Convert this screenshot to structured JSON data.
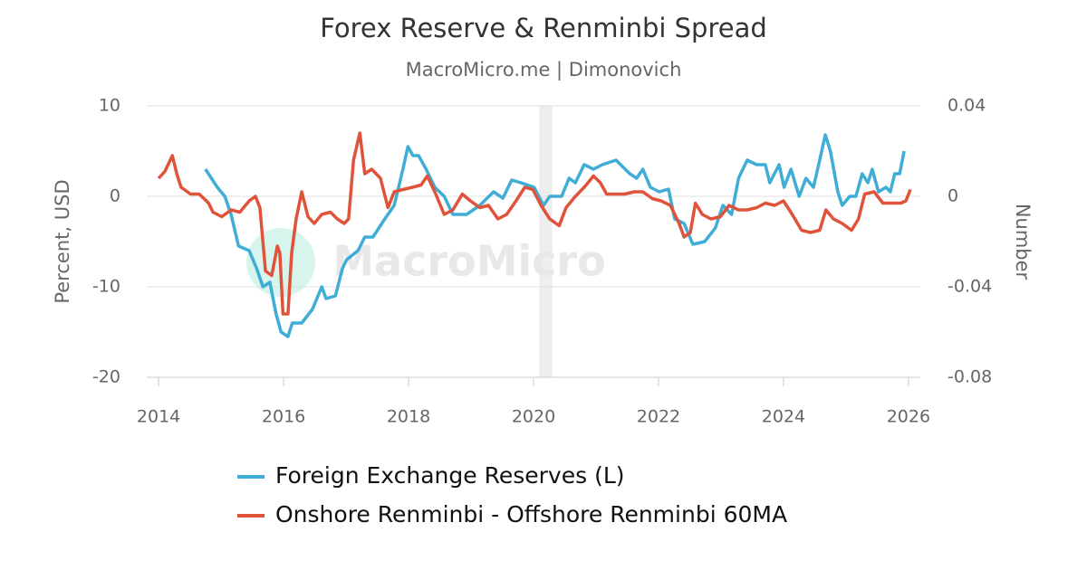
{
  "chart_data": {
    "type": "line",
    "title": "Forex Reserve & Renminbi Spread",
    "subtitle": "MacroMicro.me | Dimonovich",
    "watermark": "MacroMicro",
    "y_label": "Percent, USD",
    "y2_label": "Number",
    "xlim": [
      2013.81,
      2026.19
    ],
    "xticks": [
      2014,
      2016,
      2018,
      2020,
      2022,
      2024,
      2026
    ],
    "ylim": [
      -20,
      10
    ],
    "yticks": [
      10,
      0,
      -10,
      -20
    ],
    "y2lim": [
      -0.08,
      0.04
    ],
    "y2ticks": [
      0.04,
      0,
      -0.04,
      -0.08
    ],
    "grid": true,
    "recession_shading": [
      2020.09,
      2020.3
    ],
    "series": [
      {
        "name": "Foreign Exchange Reserves (L)",
        "color": "#3fadd6",
        "axis": "y",
        "x": [
          2014.75,
          2014.94,
          2015.06,
          2015.16,
          2015.28,
          2015.45,
          2015.57,
          2015.67,
          2015.78,
          2015.88,
          2015.96,
          2016.07,
          2016.14,
          2016.29,
          2016.46,
          2016.61,
          2016.68,
          2016.83,
          2016.94,
          2017.01,
          2017.19,
          2017.3,
          2017.43,
          2017.62,
          2017.77,
          2017.91,
          2017.99,
          2018.07,
          2018.16,
          2018.28,
          2018.42,
          2018.57,
          2018.71,
          2018.93,
          2019.14,
          2019.36,
          2019.51,
          2019.65,
          2019.8,
          2020.01,
          2020.16,
          2020.26,
          2020.45,
          2020.57,
          2020.67,
          2020.81,
          2020.96,
          2021.1,
          2021.32,
          2021.54,
          2021.65,
          2021.75,
          2021.87,
          2022.01,
          2022.16,
          2022.26,
          2022.41,
          2022.55,
          2022.74,
          2022.91,
          2023.03,
          2023.17,
          2023.28,
          2023.42,
          2023.57,
          2023.71,
          2023.78,
          2023.93,
          2024.01,
          2024.12,
          2024.25,
          2024.36,
          2024.48,
          2024.58,
          2024.67,
          2024.75,
          2024.87,
          2024.94,
          2025.06,
          2025.16,
          2025.26,
          2025.35,
          2025.42,
          2025.52,
          2025.64,
          2025.71,
          2025.78,
          2025.86,
          2025.93
        ],
        "values": [
          3,
          1,
          0,
          -2,
          -5.5,
          -6,
          -8,
          -10,
          -9.5,
          -13,
          -15,
          -15.5,
          -14,
          -14,
          -12.5,
          -10,
          -11.3,
          -11,
          -8,
          -7,
          -6,
          -4.5,
          -4.5,
          -2.5,
          -1,
          3,
          5.5,
          4.5,
          4.5,
          3,
          1,
          0,
          -2,
          -2,
          -1,
          0.5,
          -0.2,
          1.8,
          1.5,
          1,
          -1,
          0,
          0,
          2,
          1.5,
          3.5,
          3,
          3.5,
          4,
          2.5,
          2,
          3,
          1,
          0.5,
          0.8,
          -2.5,
          -3,
          -5.3,
          -5,
          -3.5,
          -1,
          -2,
          2,
          4,
          3.5,
          3.5,
          1.5,
          3.5,
          1,
          3,
          0,
          2,
          1,
          4,
          6.8,
          5,
          0.5,
          -1,
          0,
          0,
          2.5,
          1.5,
          3,
          0.5,
          1,
          0.5,
          2.5,
          2.5,
          5
        ]
      },
      {
        "name": "Onshore Renminbi - Offshore Renminbi 60MA",
        "color": "#e0533a",
        "axis": "y2",
        "x": [
          2014.0,
          2014.1,
          2014.22,
          2014.29,
          2014.36,
          2014.51,
          2014.65,
          2014.8,
          2014.87,
          2015.01,
          2015.16,
          2015.3,
          2015.45,
          2015.55,
          2015.62,
          2015.71,
          2015.81,
          2015.9,
          2015.94,
          2015.99,
          2016.07,
          2016.13,
          2016.2,
          2016.29,
          2016.39,
          2016.49,
          2016.61,
          2016.75,
          2016.86,
          2016.97,
          2017.04,
          2017.12,
          2017.22,
          2017.3,
          2017.41,
          2017.55,
          2017.67,
          2017.77,
          2017.91,
          2018.06,
          2018.2,
          2018.3,
          2018.42,
          2018.57,
          2018.71,
          2018.86,
          2018.99,
          2019.14,
          2019.28,
          2019.43,
          2019.57,
          2019.72,
          2019.86,
          2019.99,
          2020.12,
          2020.26,
          2020.41,
          2020.52,
          2020.67,
          2020.81,
          2020.96,
          2021.07,
          2021.17,
          2021.32,
          2021.46,
          2021.61,
          2021.75,
          2021.9,
          2022.04,
          2022.19,
          2022.33,
          2022.41,
          2022.51,
          2022.59,
          2022.7,
          2022.84,
          2022.99,
          2023.13,
          2023.28,
          2023.42,
          2023.57,
          2023.71,
          2023.86,
          2024.0,
          2024.14,
          2024.29,
          2024.43,
          2024.58,
          2024.68,
          2024.8,
          2024.94,
          2025.09,
          2025.2,
          2025.3,
          2025.45,
          2025.59,
          2025.74,
          2025.88,
          2025.96,
          2026.03
        ],
        "values": [
          0.008,
          0.011,
          0.018,
          0.01,
          0.004,
          0.001,
          0.001,
          -0.003,
          -0.007,
          -0.009,
          -0.006,
          -0.007,
          -0.002,
          0,
          -0.005,
          -0.033,
          -0.035,
          -0.022,
          -0.025,
          -0.052,
          -0.052,
          -0.025,
          -0.01,
          0.002,
          -0.009,
          -0.012,
          -0.008,
          -0.007,
          -0.01,
          -0.012,
          -0.01,
          0.016,
          0.028,
          0.01,
          0.012,
          0.008,
          -0.005,
          0.002,
          0.003,
          0.004,
          0.005,
          0.009,
          0.002,
          -0.008,
          -0.006,
          0.001,
          -0.002,
          -0.005,
          -0.004,
          -0.01,
          -0.008,
          -0.002,
          0.004,
          0.003,
          -0.004,
          -0.01,
          -0.013,
          -0.005,
          0,
          0.004,
          0.009,
          0.006,
          0.001,
          0.001,
          0.001,
          0.002,
          0.002,
          -0.001,
          -0.002,
          -0.004,
          -0.012,
          -0.018,
          -0.016,
          -0.003,
          -0.008,
          -0.01,
          -0.009,
          -0.004,
          -0.006,
          -0.006,
          -0.005,
          -0.003,
          -0.004,
          -0.002,
          -0.008,
          -0.015,
          -0.016,
          -0.015,
          -0.006,
          -0.01,
          -0.012,
          -0.015,
          -0.01,
          0.001,
          0.002,
          -0.003,
          -0.003,
          -0.003,
          -0.002,
          0.003
        ]
      }
    ]
  }
}
